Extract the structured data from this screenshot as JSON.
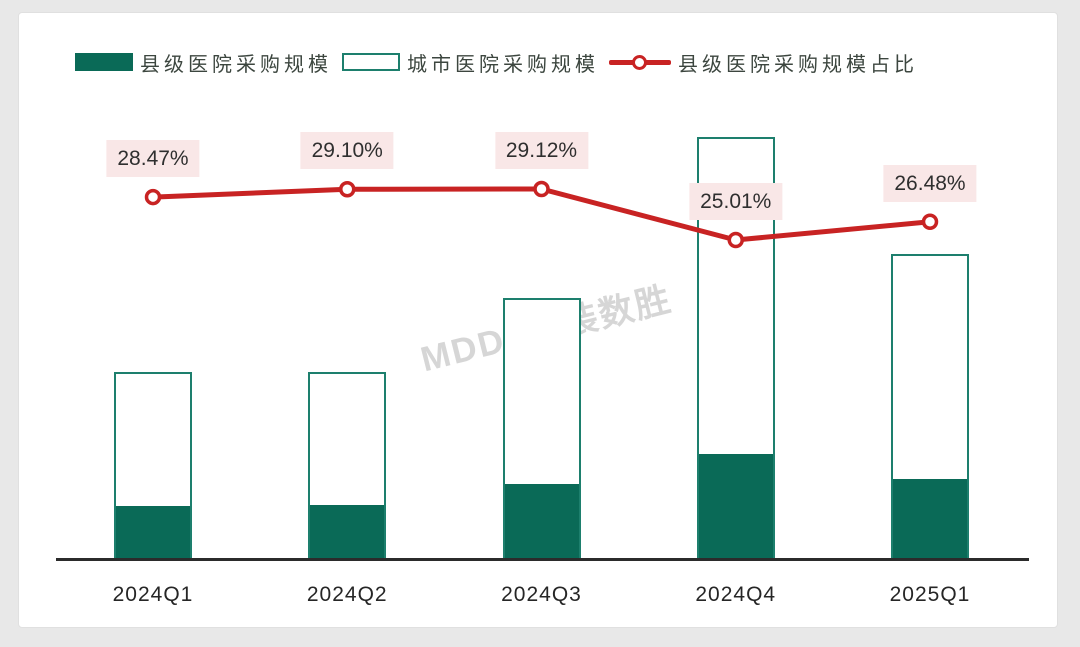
{
  "watermark": "MDDI 医装数胜",
  "legend": {
    "county": "县级医院采购规模",
    "city": "城市医院采购规模",
    "ratio": "县级医院采购规模占比"
  },
  "colors": {
    "teal_fill": "#0a6a57",
    "teal_border": "#1d7f6d",
    "red_line": "#c82323",
    "label_bg": "#f9e7e7",
    "axis": "#2b2b2b"
  },
  "chart_data": {
    "type": "bar",
    "subtype": "stacked-bar-with-line",
    "categories": [
      "2024Q1",
      "2024Q2",
      "2024Q3",
      "2024Q4",
      "2025Q1"
    ],
    "series": [
      {
        "name": "县级医院采购规模",
        "chart": "stacked-bar",
        "values": [
          12.65,
          12.93,
          18.03,
          25.01,
          19.15
        ]
      },
      {
        "name": "城市医院采购规模",
        "chart": "stacked-bar",
        "values": [
          31.79,
          31.51,
          43.89,
          74.99,
          53.17
        ]
      },
      {
        "name": "县级医院采购规模占比",
        "chart": "line",
        "axis": "secondary",
        "values": [
          28.47,
          29.1,
          29.12,
          25.01,
          26.48
        ],
        "point_labels": [
          "28.47%",
          "29.10%",
          "29.12%",
          "25.01%",
          "26.48%"
        ]
      }
    ],
    "note": "no value axis shown; bar values estimated in relative units where 2024Q4 stacked total = 100",
    "value_axis_visible": false,
    "grid": false,
    "legend_position": "top"
  }
}
